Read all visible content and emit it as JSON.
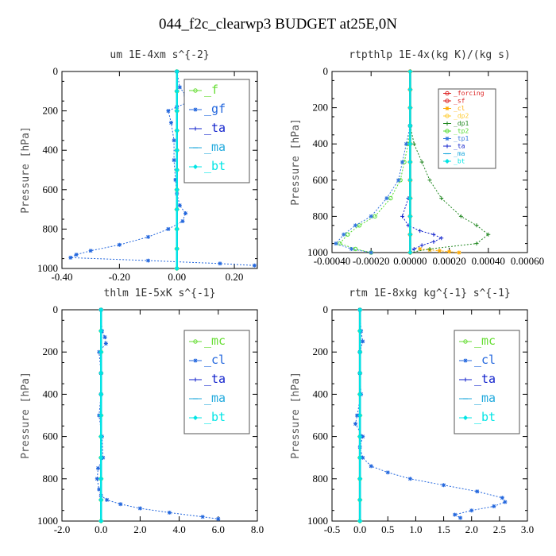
{
  "title": "044_f2c_clearwp3  BUDGET at25E,0N",
  "chart_data": [
    {
      "type": "line",
      "title": "um  1E-4xm s^{-2}",
      "ylabel": "Pressure [hPa]",
      "ylim": [
        1000,
        0
      ],
      "xlim": [
        -0.4,
        0.28
      ],
      "xticks": [
        "-0.40",
        "-0.20",
        "0.00",
        "0.20"
      ],
      "xtick_values": [
        -0.4,
        -0.2,
        0.0,
        0.2
      ],
      "yticks": [
        "0",
        "200",
        "400",
        "600",
        "800",
        "1000"
      ],
      "ytick_values": [
        0,
        200,
        400,
        600,
        800,
        1000
      ],
      "grid": false,
      "legend": "top-right",
      "legend_style": "large",
      "series": [
        {
          "name": "_f",
          "color": "#66dd33",
          "marker": "o",
          "p": [
            0,
            100,
            200,
            300,
            400,
            500,
            600,
            700,
            800,
            900,
            1000
          ],
          "x": [
            0.0,
            0.0,
            0.0,
            0.0,
            0.0,
            0.0,
            0.0,
            0.0,
            0.0,
            0.0,
            0.0
          ]
        },
        {
          "name": "_gf",
          "color": "#2266dd",
          "marker": "*",
          "p": [
            0,
            80,
            120,
            150,
            180,
            200,
            260,
            350,
            450,
            550,
            620,
            680,
            720,
            760,
            800,
            840,
            880,
            910,
            930,
            945,
            960,
            975,
            985
          ],
          "x": [
            0.0,
            0.01,
            0.03,
            0.05,
            0.0,
            -0.03,
            -0.02,
            -0.01,
            -0.01,
            -0.005,
            0.0,
            0.01,
            0.03,
            0.02,
            -0.03,
            -0.1,
            -0.2,
            -0.3,
            -0.35,
            -0.37,
            -0.1,
            0.15,
            0.27
          ]
        },
        {
          "name": "_ta",
          "color": "#1122cc",
          "marker": "+",
          "p": [
            0,
            100,
            200,
            300,
            400,
            500,
            600,
            700,
            800,
            900,
            1000
          ],
          "x": [
            0.0,
            0.0,
            0.0,
            0.0,
            0.0,
            0.0,
            0.0,
            0.0,
            0.0,
            0.0,
            0.0
          ]
        },
        {
          "name": "_ma",
          "color": "#22aadd",
          "marker": "-",
          "p": [
            0,
            100,
            200,
            300,
            400,
            500,
            600,
            700,
            800,
            900,
            1000
          ],
          "x": [
            0.0,
            0.0,
            0.0,
            0.0,
            0.0,
            0.0,
            0.0,
            0.0,
            0.0,
            0.0,
            0.0
          ]
        },
        {
          "name": "_bt",
          "color": "#00e5e5",
          "marker": "d",
          "p": [
            0,
            100,
            200,
            300,
            400,
            500,
            600,
            700,
            800,
            900,
            1000
          ],
          "x": [
            0.0,
            0.0,
            0.0,
            0.0,
            0.0,
            0.0,
            0.0,
            0.0,
            0.0,
            0.0,
            0.0
          ]
        }
      ]
    },
    {
      "type": "line",
      "title": "rtpthlp  1E-4x(kg K)/(kg s)",
      "ylabel": "Pressure [hPa]",
      "ylim": [
        1000,
        0
      ],
      "xlim": [
        -0.0004,
        0.0006
      ],
      "xticks": [
        "-0.00040",
        "-0.00020",
        "0.00000",
        "0.00020",
        "0.00040",
        "0.00060"
      ],
      "xtick_values": [
        -0.0004,
        -0.0002,
        0.0,
        0.0002,
        0.0004,
        0.0006
      ],
      "yticks": [
        "0",
        "200",
        "400",
        "600",
        "800",
        "1000"
      ],
      "ytick_values": [
        0,
        200,
        400,
        600,
        800,
        1000
      ],
      "grid": false,
      "legend": "top-right",
      "legend_style": "small",
      "series": [
        {
          "name": "_forcing",
          "color": "#dd2222",
          "marker": "o",
          "p": [
            0,
            100,
            200,
            300,
            400,
            500,
            600,
            700,
            800,
            900,
            1000
          ],
          "x": [
            0,
            0,
            0,
            0,
            0,
            0,
            0,
            0,
            0,
            0,
            0
          ]
        },
        {
          "name": "_sf",
          "color": "#dd2222",
          "marker": "o",
          "p": [
            0,
            100,
            200,
            300,
            400,
            500,
            600,
            700,
            800,
            900,
            1000
          ],
          "x": [
            0,
            0,
            0,
            0,
            0,
            0,
            0,
            0,
            0,
            0,
            0
          ]
        },
        {
          "name": "_cl",
          "color": "#ffaa00",
          "marker": "*",
          "p": [
            980,
            985,
            990,
            995,
            1000
          ],
          "x": [
            5e-05,
            0.0001,
            0.00015,
            0.0002,
            0.00025
          ]
        },
        {
          "name": "_dp2",
          "color": "#ffcc33",
          "marker": "o",
          "p": [
            0,
            100,
            200,
            300,
            400,
            500,
            600,
            700,
            800,
            900,
            1000
          ],
          "x": [
            0,
            0,
            0,
            0,
            0,
            0,
            0,
            0,
            0,
            0,
            0
          ]
        },
        {
          "name": "_dp1",
          "color": "#228822",
          "marker": "+",
          "p": [
            300,
            400,
            500,
            600,
            700,
            800,
            850,
            900,
            950,
            980,
            1000
          ],
          "x": [
            0.0,
            2e-05,
            6e-05,
            0.0001,
            0.00016,
            0.00026,
            0.00034,
            0.0004,
            0.00034,
            0.0001,
            0.0
          ]
        },
        {
          "name": "_tp2",
          "color": "#55dd33",
          "marker": "o",
          "p": [
            300,
            400,
            500,
            600,
            700,
            800,
            850,
            900,
            950,
            980,
            1000
          ],
          "x": [
            0.0,
            -1e-05,
            -3e-05,
            -5e-05,
            -0.0001,
            -0.00018,
            -0.00026,
            -0.00032,
            -0.00036,
            -0.00028,
            -0.0002
          ]
        },
        {
          "name": "_tp1",
          "color": "#3377dd",
          "marker": "*",
          "p": [
            300,
            400,
            500,
            600,
            700,
            800,
            850,
            900,
            950,
            980,
            1000
          ],
          "x": [
            0.0,
            -2e-05,
            -4e-05,
            -6e-05,
            -0.00012,
            -0.0002,
            -0.00028,
            -0.00034,
            -0.00038,
            -0.0003,
            -0.0002
          ]
        },
        {
          "name": "_ta",
          "color": "#1122cc",
          "marker": "+",
          "p": [
            700,
            800,
            850,
            880,
            900,
            920,
            940,
            960,
            980,
            1000
          ],
          "x": [
            -1e-05,
            -4e-05,
            -1e-05,
            5e-05,
            0.00012,
            0.00016,
            0.00012,
            6e-05,
            2e-05,
            0.0
          ]
        },
        {
          "name": "_ma",
          "color": "#22aadd",
          "marker": "-",
          "p": [
            0,
            100,
            200,
            300,
            400,
            500,
            600,
            700,
            800,
            900,
            1000
          ],
          "x": [
            0,
            0,
            0,
            0,
            0,
            0,
            0,
            0,
            0,
            0,
            0
          ]
        },
        {
          "name": "_bt",
          "color": "#00e5e5",
          "marker": "d",
          "p": [
            0,
            100,
            200,
            300,
            400,
            500,
            600,
            700,
            800,
            900,
            1000
          ],
          "x": [
            0,
            0,
            0,
            0,
            0,
            0,
            0,
            0,
            0,
            0,
            0
          ]
        }
      ]
    },
    {
      "type": "line",
      "title": "thlm  1E-5xK s^{-1}",
      "ylabel": "Pressure [hPa]",
      "ylim": [
        1000,
        0
      ],
      "xlim": [
        -2.0,
        8.0
      ],
      "xticks": [
        "-2.0",
        "0.0",
        "2.0",
        "4.0",
        "6.0",
        "8.0"
      ],
      "xtick_values": [
        -2,
        0,
        2,
        4,
        6,
        8
      ],
      "yticks": [
        "0",
        "200",
        "400",
        "600",
        "800",
        "1000"
      ],
      "ytick_values": [
        0,
        200,
        400,
        600,
        800,
        1000
      ],
      "grid": false,
      "legend": "top-right",
      "legend_style": "large",
      "series": [
        {
          "name": "_mc",
          "color": "#66dd33",
          "marker": "o",
          "p": [
            0,
            100,
            200,
            300,
            400,
            500,
            600,
            700,
            800,
            900,
            1000
          ],
          "x": [
            0,
            0,
            0,
            0,
            0,
            0,
            0,
            0,
            0,
            0,
            0
          ]
        },
        {
          "name": "_cl",
          "color": "#2266dd",
          "marker": "*",
          "p": [
            0,
            100,
            130,
            160,
            200,
            300,
            400,
            500,
            600,
            700,
            750,
            800,
            850,
            880,
            900,
            920,
            940,
            960,
            980,
            990
          ],
          "x": [
            0.0,
            0.05,
            0.2,
            0.25,
            -0.1,
            0.0,
            0.0,
            -0.1,
            0.05,
            0.1,
            -0.15,
            -0.2,
            -0.1,
            0.0,
            0.3,
            1.0,
            2.0,
            3.5,
            5.2,
            6.0
          ]
        },
        {
          "name": "_ta",
          "color": "#1122cc",
          "marker": "+",
          "p": [
            0,
            100,
            200,
            300,
            400,
            500,
            600,
            700,
            800,
            900,
            1000
          ],
          "x": [
            0,
            0,
            0,
            0,
            0,
            0,
            0,
            0,
            0,
            0,
            0
          ]
        },
        {
          "name": "_ma",
          "color": "#22aadd",
          "marker": "-",
          "p": [
            0,
            100,
            200,
            300,
            400,
            500,
            600,
            700,
            800,
            900,
            1000
          ],
          "x": [
            0,
            0,
            0,
            0,
            0,
            0,
            0,
            0,
            0,
            0,
            0
          ]
        },
        {
          "name": "_bt",
          "color": "#00e5e5",
          "marker": "d",
          "p": [
            0,
            100,
            200,
            300,
            400,
            500,
            600,
            700,
            800,
            900,
            1000
          ],
          "x": [
            0,
            0,
            0,
            0,
            0,
            0,
            0,
            0,
            0,
            0,
            0
          ]
        }
      ]
    },
    {
      "type": "line",
      "title": "rtm  1E-8xkg kg^{-1} s^{-1}",
      "ylabel": "Pressure [hPa]",
      "ylim": [
        1000,
        0
      ],
      "xlim": [
        -0.5,
        3.0
      ],
      "xticks": [
        "-0.5",
        "0.0",
        "0.5",
        "1.0",
        "1.5",
        "2.0",
        "2.5",
        "3.0"
      ],
      "xtick_values": [
        -0.5,
        0,
        0.5,
        1,
        1.5,
        2,
        2.5,
        3
      ],
      "yticks": [
        "0",
        "200",
        "400",
        "600",
        "800",
        "1000"
      ],
      "ytick_values": [
        0,
        200,
        400,
        600,
        800,
        1000
      ],
      "grid": false,
      "legend": "top-right",
      "legend_style": "large",
      "series": [
        {
          "name": "_mc",
          "color": "#66dd33",
          "marker": "o",
          "p": [
            0,
            100,
            200,
            300,
            400,
            500,
            600,
            700,
            800,
            900,
            1000
          ],
          "x": [
            0,
            0,
            0,
            0,
            0,
            0,
            0,
            0,
            0,
            0,
            0
          ]
        },
        {
          "name": "_cl",
          "color": "#2266dd",
          "marker": "*",
          "p": [
            0,
            100,
            150,
            200,
            300,
            400,
            500,
            540,
            600,
            650,
            700,
            740,
            770,
            800,
            830,
            860,
            890,
            910,
            930,
            950,
            970,
            985
          ],
          "x": [
            0.0,
            0.02,
            0.05,
            0.0,
            0.0,
            0.02,
            -0.05,
            -0.08,
            0.05,
            0.0,
            0.05,
            0.2,
            0.5,
            0.9,
            1.5,
            2.1,
            2.55,
            2.6,
            2.4,
            2.0,
            1.7,
            1.8
          ]
        },
        {
          "name": "_ta",
          "color": "#1122cc",
          "marker": "+",
          "p": [
            0,
            100,
            200,
            300,
            400,
            500,
            600,
            700,
            800,
            900,
            1000
          ],
          "x": [
            0,
            0,
            0,
            0,
            0,
            0,
            0,
            0,
            0,
            0,
            0
          ]
        },
        {
          "name": "_ma",
          "color": "#22aadd",
          "marker": "-",
          "p": [
            0,
            100,
            200,
            300,
            400,
            500,
            600,
            700,
            800,
            900,
            1000
          ],
          "x": [
            0,
            0,
            0,
            0,
            0,
            0,
            0,
            0,
            0,
            0,
            0
          ]
        },
        {
          "name": "_bt",
          "color": "#00e5e5",
          "marker": "d",
          "p": [
            0,
            100,
            200,
            300,
            400,
            500,
            600,
            700,
            800,
            900,
            1000
          ],
          "x": [
            0,
            0,
            0,
            0,
            0,
            0,
            0,
            0,
            0,
            0,
            0
          ]
        }
      ]
    }
  ]
}
